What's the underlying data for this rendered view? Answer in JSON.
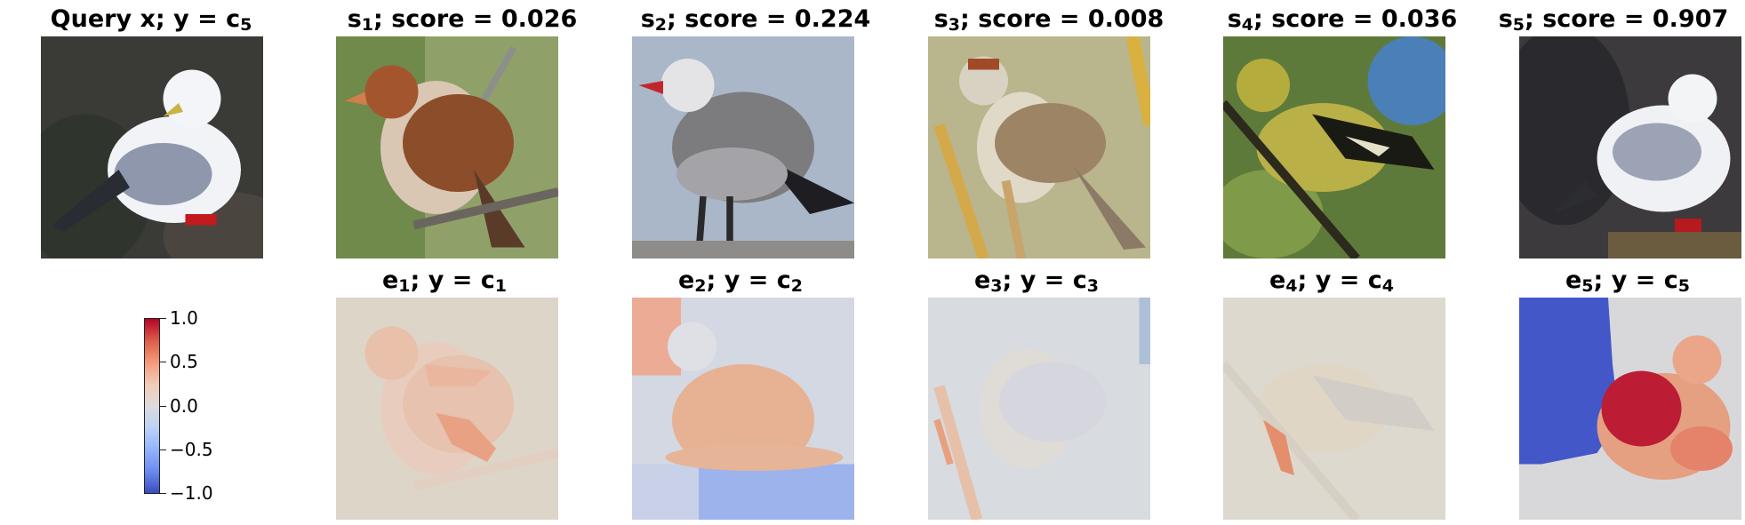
{
  "query": {
    "title_main": "Query x; y = c",
    "title_sub": "5"
  },
  "support": [
    {
      "title_main": "s",
      "title_sub": "1",
      "score_label": "; score = 0.026",
      "bird": "sparrow"
    },
    {
      "title_main": "s",
      "title_sub": "2",
      "score_label": "; score = 0.224",
      "bird": "gull"
    },
    {
      "title_main": "s",
      "title_sub": "3",
      "score_label": "; score = 0.008",
      "bird": "sparrow"
    },
    {
      "title_main": "s",
      "title_sub": "4",
      "score_label": "; score = 0.036",
      "bird": "finch"
    },
    {
      "title_main": "s",
      "title_sub": "5",
      "score_label": "; score = 0.907",
      "bird": "gull"
    }
  ],
  "explanations": [
    {
      "title_main": "e",
      "title_sub": "1",
      "class_label": "; y = c",
      "class_sub": "1"
    },
    {
      "title_main": "e",
      "title_sub": "2",
      "class_label": "; y = c",
      "class_sub": "2"
    },
    {
      "title_main": "e",
      "title_sub": "3",
      "class_label": "; y = c",
      "class_sub": "3"
    },
    {
      "title_main": "e",
      "title_sub": "4",
      "class_label": "; y = c",
      "class_sub": "4"
    },
    {
      "title_main": "e",
      "title_sub": "5",
      "class_label": "; y = c",
      "class_sub": "5"
    }
  ],
  "colorbar": {
    "ticks": [
      "1.0",
      "0.5",
      "0.0",
      "−0.5",
      "−1.0"
    ],
    "colormap": "coolwarm"
  }
}
